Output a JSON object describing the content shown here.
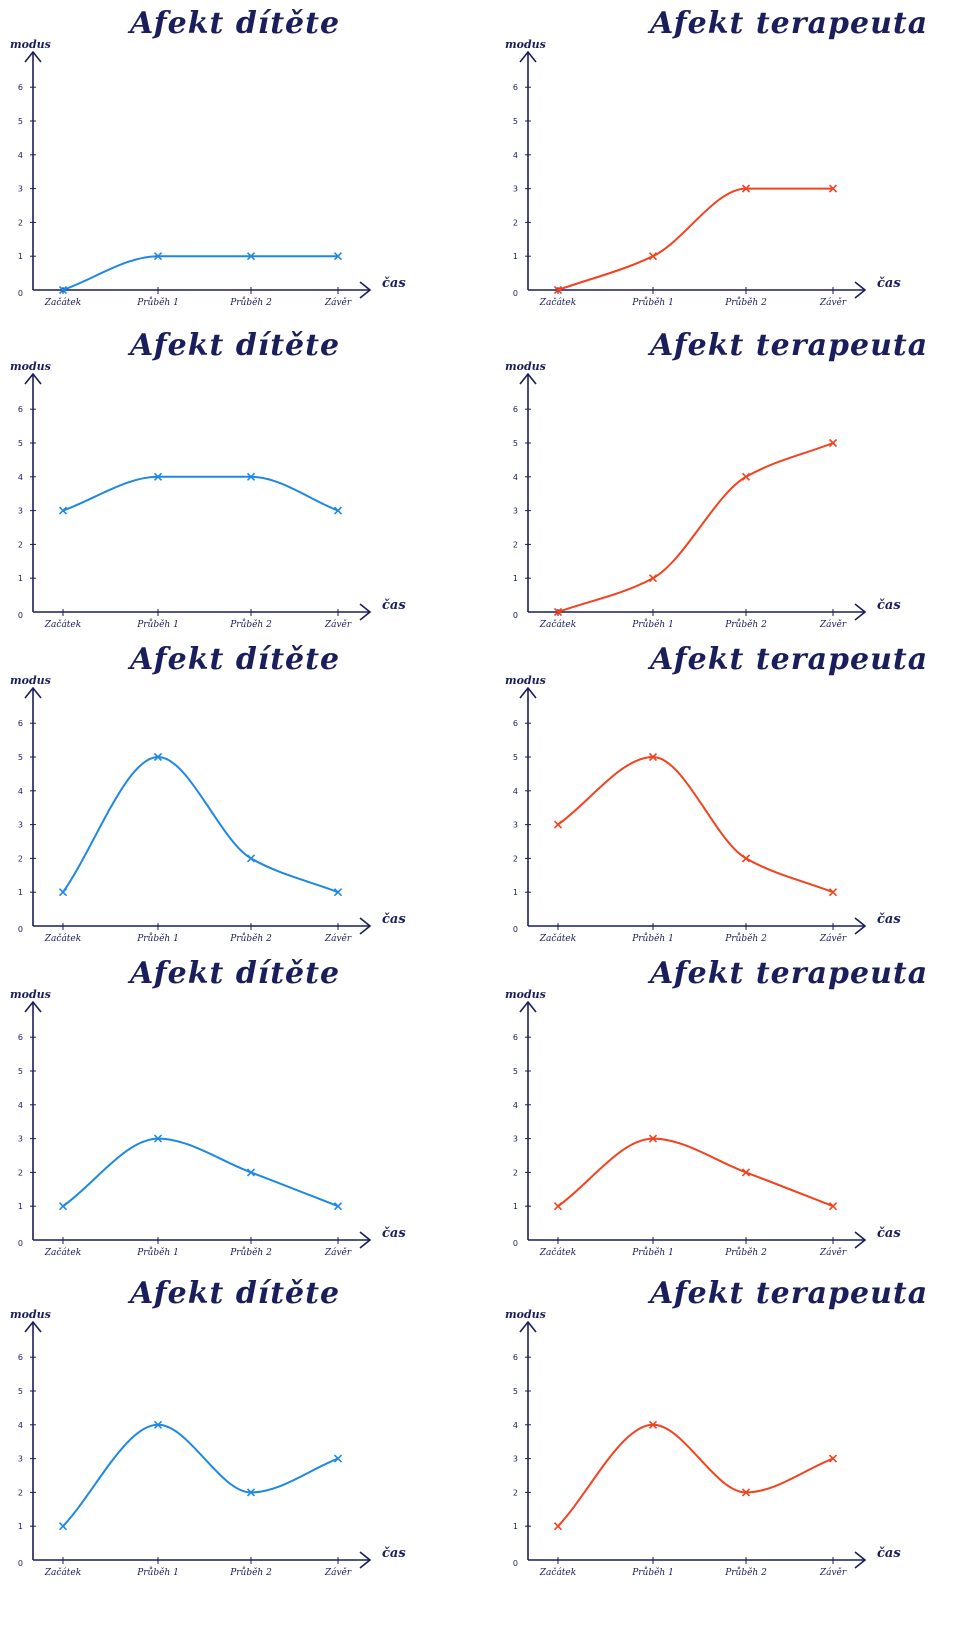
{
  "colors": {
    "ink": "#1a1e5c",
    "child": "#1e88e5",
    "therapist": "#f4411e"
  },
  "chart_data": [
    {
      "type": "line",
      "title": "Afekt dítěte",
      "ylabel": "modus",
      "xlabel": "čas",
      "categories": [
        "Začátek",
        "Průběh 1",
        "Průběh 2",
        "Závěr"
      ],
      "yticks": [
        "0",
        "1",
        "2",
        "3",
        "4",
        "5",
        "6"
      ],
      "ylim": [
        0,
        6.6
      ],
      "series": [
        {
          "values": [
            0,
            1,
            1,
            1
          ]
        }
      ]
    },
    {
      "type": "line",
      "title": "Afekt terapeuta",
      "ylabel": "modus",
      "xlabel": "čas",
      "categories": [
        "Začátek",
        "Průběh 1",
        "Průběh 2",
        "Závěr"
      ],
      "yticks": [
        "0",
        "1",
        "2",
        "3",
        "4",
        "5",
        "6"
      ],
      "ylim": [
        0,
        6.6
      ],
      "series": [
        {
          "values": [
            0,
            1,
            3,
            3
          ]
        }
      ]
    },
    {
      "type": "line",
      "title": "Afekt dítěte",
      "ylabel": "modus",
      "xlabel": "čas",
      "categories": [
        "Začátek",
        "Průběh 1",
        "Průběh 2",
        "Závěr"
      ],
      "yticks": [
        "0",
        "1",
        "2",
        "3",
        "4",
        "5",
        "6"
      ],
      "ylim": [
        0,
        6.6
      ],
      "series": [
        {
          "values": [
            3,
            4,
            4,
            3
          ]
        }
      ]
    },
    {
      "type": "line",
      "title": "Afekt terapeuta",
      "ylabel": "modus",
      "xlabel": "čas",
      "categories": [
        "Začátek",
        "Průběh 1",
        "Průběh 2",
        "Závěr"
      ],
      "yticks": [
        "0",
        "1",
        "2",
        "3",
        "4",
        "5",
        "6"
      ],
      "ylim": [
        0,
        6.6
      ],
      "series": [
        {
          "values": [
            0,
            1,
            4,
            5
          ]
        }
      ]
    },
    {
      "type": "line",
      "title": "Afekt dítěte",
      "ylabel": "modus",
      "xlabel": "čas",
      "categories": [
        "Začátek",
        "Průběh 1",
        "Průběh 2",
        "Závěr"
      ],
      "yticks": [
        "0",
        "1",
        "2",
        "3",
        "4",
        "5",
        "6"
      ],
      "ylim": [
        0,
        6.6
      ],
      "series": [
        {
          "values": [
            1,
            5,
            2,
            1
          ]
        }
      ]
    },
    {
      "type": "line",
      "title": "Afekt terapeuta",
      "ylabel": "modus",
      "xlabel": "čas",
      "categories": [
        "Začátek",
        "Průběh 1",
        "Průběh 2",
        "Závěr"
      ],
      "yticks": [
        "0",
        "1",
        "2",
        "3",
        "4",
        "5",
        "6"
      ],
      "ylim": [
        0,
        6.6
      ],
      "series": [
        {
          "values": [
            3,
            5,
            2,
            1
          ]
        }
      ]
    },
    {
      "type": "line",
      "title": "Afekt dítěte",
      "ylabel": "modus",
      "xlabel": "čas",
      "categories": [
        "Začátek",
        "Průběh 1",
        "Průběh 2",
        "Závěr"
      ],
      "yticks": [
        "0",
        "1",
        "2",
        "3",
        "4",
        "5",
        "6"
      ],
      "ylim": [
        0,
        6.6
      ],
      "series": [
        {
          "values": [
            1,
            3,
            2,
            1
          ]
        }
      ]
    },
    {
      "type": "line",
      "title": "Afekt terapeuta",
      "ylabel": "modus",
      "xlabel": "čas",
      "categories": [
        "Začátek",
        "Průběh 1",
        "Průběh 2",
        "Závěr"
      ],
      "yticks": [
        "0",
        "1",
        "2",
        "3",
        "4",
        "5",
        "6"
      ],
      "ylim": [
        0,
        6.6
      ],
      "series": [
        {
          "values": [
            1,
            3,
            2,
            1
          ]
        }
      ]
    },
    {
      "type": "line",
      "title": "Afekt dítěte",
      "ylabel": "modus",
      "xlabel": "čas",
      "categories": [
        "Začátek",
        "Průběh 1",
        "Průběh 2",
        "Závěr"
      ],
      "yticks": [
        "0",
        "1",
        "2",
        "3",
        "4",
        "5",
        "6"
      ],
      "ylim": [
        0,
        6.6
      ],
      "series": [
        {
          "values": [
            1,
            4,
            2,
            3
          ]
        }
      ]
    },
    {
      "type": "line",
      "title": "Afekt terapeuta",
      "ylabel": "modus",
      "xlabel": "čas",
      "categories": [
        "Začátek",
        "Průběh 1",
        "Průběh 2",
        "Závěr"
      ],
      "yticks": [
        "0",
        "1",
        "2",
        "3",
        "4",
        "5",
        "6"
      ],
      "ylim": [
        0,
        6.6
      ],
      "series": [
        {
          "values": [
            1,
            4,
            2,
            3
          ]
        }
      ]
    }
  ]
}
